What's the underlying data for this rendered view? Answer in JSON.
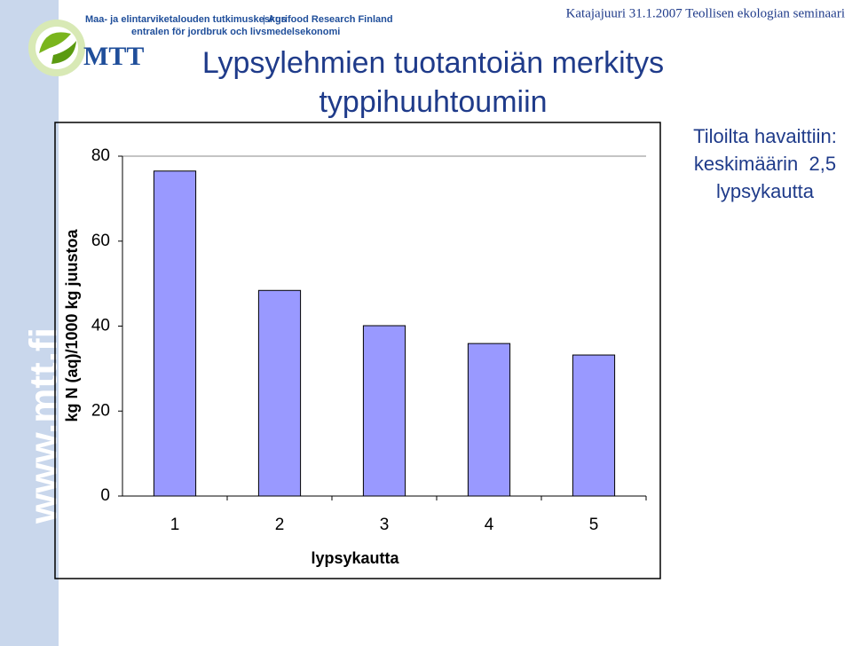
{
  "header": {
    "org_line_1a": "Maa- ja elintarviketalouden tutkimuskeskus",
    "org_line_1b": "Agrifood Research Finland",
    "org_line_2": "entralen för jordbruk och livsmedelsekonomi",
    "logo": "MTT",
    "meta": "Katajajuuri 31.1.2007 Teollisen ekologian seminaari",
    "side_url": "www.mtt.fi"
  },
  "chart_data": {
    "type": "bar",
    "title": [
      "Lypsylehmien tuotantoiän merkitys",
      "typpihuuhtoumiin"
    ],
    "y_label": "kg N (aq)/1000 kg juustoa",
    "x_label": "lypsykautta",
    "categories": [
      "1",
      "2",
      "3",
      "4",
      "5"
    ],
    "values": [
      76.5,
      48.4,
      40.1,
      35.9,
      33.2
    ],
    "color": "#9999ff",
    "ylim": [
      0,
      80
    ],
    "yticks": [
      0,
      20,
      40,
      60,
      80
    ],
    "grid": false,
    "annotation": [
      "Tiloilta havaittiin:",
      "keskimäärin  2,5",
      "lypsykautta"
    ]
  }
}
